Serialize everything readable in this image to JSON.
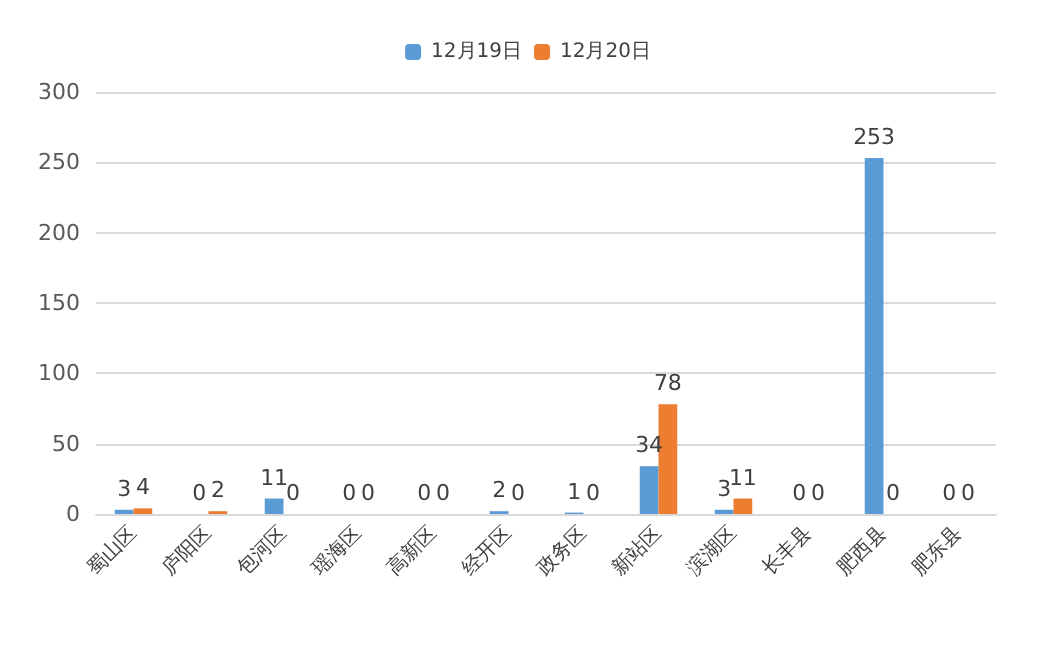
{
  "chart_data": {
    "type": "bar",
    "categories": [
      "蜀山区",
      "庐阳区",
      "包河区",
      "瑶海区",
      "高新区",
      "经开区",
      "政务区",
      "新站区",
      "滨湖区",
      "长丰县",
      "肥西县",
      "肥东县"
    ],
    "series": [
      {
        "name": "12月19日",
        "color": "#5b9bd5",
        "values": [
          3,
          0,
          11,
          0,
          0,
          2,
          1,
          34,
          3,
          0,
          253,
          0
        ]
      },
      {
        "name": "12月20日",
        "color": "#ed7d31",
        "values": [
          4,
          2,
          0,
          0,
          0,
          0,
          0,
          78,
          11,
          0,
          0,
          0
        ]
      }
    ],
    "ylim": [
      0,
      300
    ],
    "yticks": [
      0,
      50,
      100,
      150,
      200,
      250,
      300
    ],
    "grid": "y",
    "legend": "top",
    "data_labels": true
  }
}
